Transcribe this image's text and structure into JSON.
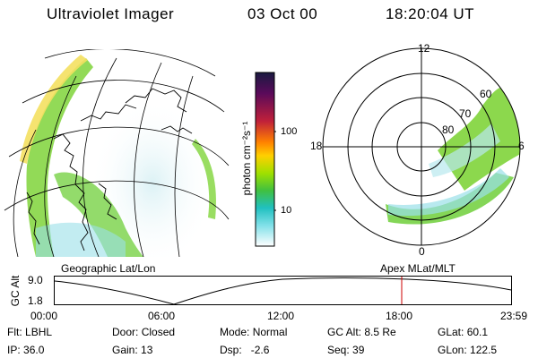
{
  "header": {
    "instrument": "Ultraviolet Imager",
    "date": "03 Oct 00",
    "time": "18:20:04 UT"
  },
  "colorbar": {
    "unit_label": "photon cm⁻²s⁻¹",
    "ticks": [
      "100",
      "10"
    ],
    "scale": "log",
    "colors": [
      "#1a1a40",
      "#5a0a5a",
      "#c0203a",
      "#ff8000",
      "#ffd000",
      "#a0e000",
      "#40c040",
      "#20c0c0",
      "#80e0e8",
      "#ffffff"
    ]
  },
  "left_map": {
    "label": "Geographic Lat/Lon",
    "emission_color": "#7fd43a"
  },
  "right_map": {
    "label": "Apex MLat/MLT",
    "mlt_labels": {
      "top": "12",
      "left": "18",
      "right": "6",
      "bottom": "0"
    },
    "lat_labels": [
      "80",
      "70",
      "60"
    ]
  },
  "orbit_plot": {
    "ylabel": "GC Alt",
    "y_ticks": [
      "9.0",
      "1.8"
    ],
    "x_ticks": [
      "00:00",
      "06:00",
      "12:00",
      "18:00",
      "23:59"
    ],
    "marker_time": "18:20",
    "marker_color": "#cc0000"
  },
  "info": {
    "row1": [
      {
        "k": "Flt:",
        "v": "LBHL"
      },
      {
        "k": "Door:",
        "v": "Closed"
      },
      {
        "k": "Mode:",
        "v": "Normal"
      },
      {
        "k": "GC Alt:",
        "v": "8.5 Re"
      },
      {
        "k": "GLat:",
        "v": "60.1"
      }
    ],
    "row2": [
      {
        "k": "IP:",
        "v": "36.0"
      },
      {
        "k": "Gain:",
        "v": "13"
      },
      {
        "k": "Dsp:",
        "v": "-2.6"
      },
      {
        "k": "Seq:",
        "v": "39"
      },
      {
        "k": "GLon:",
        "v": "122.5"
      }
    ]
  }
}
